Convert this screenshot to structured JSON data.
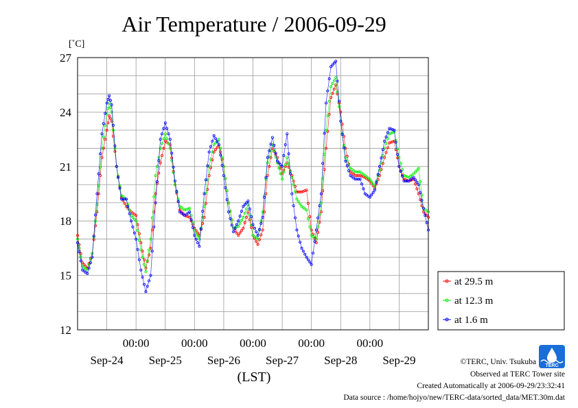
{
  "chart_data": {
    "type": "line",
    "title": "Air Temperature / 2006-09-29",
    "ylabel": "[˚C]",
    "xlabel": "(LST)",
    "ylim": [
      12,
      27
    ],
    "yticks": [
      "27",
      "24",
      "21",
      "18",
      "15",
      "12"
    ],
    "xlim_hours": [
      0,
      144
    ],
    "time_tick_labels": [
      "00:00",
      "00:00",
      "00:00",
      "00:00",
      "00:00"
    ],
    "date_labels": [
      "Sep-24",
      "Sep-25",
      "Sep-26",
      "Sep-27",
      "Sep-28",
      "Sep-29"
    ],
    "grid": true,
    "legend_position": "right-bottom outside",
    "series": [
      {
        "name": "at 29.5 m",
        "color": "#ff0000",
        "points": [
          [
            0,
            17.2
          ],
          [
            2,
            15.7
          ],
          [
            4,
            15.4
          ],
          [
            6,
            16.2
          ],
          [
            8,
            18.5
          ],
          [
            10,
            21.5
          ],
          [
            12,
            23.0
          ],
          [
            13,
            23.8
          ],
          [
            14,
            23.5
          ],
          [
            16,
            21.0
          ],
          [
            18,
            19.3
          ],
          [
            20,
            18.8
          ],
          [
            22,
            18.5
          ],
          [
            24,
            18.3
          ],
          [
            26,
            16.8
          ],
          [
            28,
            15.4
          ],
          [
            30,
            16.5
          ],
          [
            32,
            19.5
          ],
          [
            34,
            21.2
          ],
          [
            36,
            22.4
          ],
          [
            38,
            22.2
          ],
          [
            40,
            20.0
          ],
          [
            42,
            18.6
          ],
          [
            44,
            18.3
          ],
          [
            46,
            18.2
          ],
          [
            48,
            17.6
          ],
          [
            50,
            17.2
          ],
          [
            52,
            18.2
          ],
          [
            54,
            20.5
          ],
          [
            56,
            21.8
          ],
          [
            58,
            22.2
          ],
          [
            60,
            21.0
          ],
          [
            62,
            19.0
          ],
          [
            64,
            17.6
          ],
          [
            66,
            17.2
          ],
          [
            68,
            17.6
          ],
          [
            70,
            18.5
          ],
          [
            72,
            17.2
          ],
          [
            74,
            16.7
          ],
          [
            76,
            17.5
          ],
          [
            78,
            20.5
          ],
          [
            80,
            22.0
          ],
          [
            82,
            21.5
          ],
          [
            84,
            20.6
          ],
          [
            86,
            21.2
          ],
          [
            88,
            20.5
          ],
          [
            90,
            19.6
          ],
          [
            92,
            19.6
          ],
          [
            94,
            19.7
          ],
          [
            96,
            17.5
          ],
          [
            98,
            16.8
          ],
          [
            100,
            18.5
          ],
          [
            102,
            22.0
          ],
          [
            104,
            24.8
          ],
          [
            106,
            25.5
          ],
          [
            108,
            24.0
          ],
          [
            110,
            22.0
          ],
          [
            112,
            20.7
          ],
          [
            114,
            20.5
          ],
          [
            116,
            20.5
          ],
          [
            118,
            20.4
          ],
          [
            120,
            20.2
          ],
          [
            122,
            19.8
          ],
          [
            124,
            20.5
          ],
          [
            126,
            21.5
          ],
          [
            128,
            22.3
          ],
          [
            130,
            22.4
          ],
          [
            132,
            21.0
          ],
          [
            134,
            20.3
          ],
          [
            136,
            20.2
          ],
          [
            138,
            20.3
          ],
          [
            140,
            19.5
          ],
          [
            142,
            18.5
          ],
          [
            144,
            18.2
          ]
        ]
      },
      {
        "name": "at 12.3 m",
        "color": "#00ee00",
        "points": [
          [
            0,
            17.0
          ],
          [
            2,
            15.5
          ],
          [
            4,
            15.3
          ],
          [
            6,
            16.2
          ],
          [
            8,
            18.9
          ],
          [
            10,
            22.0
          ],
          [
            12,
            23.9
          ],
          [
            13,
            24.5
          ],
          [
            14,
            24.0
          ],
          [
            16,
            21.0
          ],
          [
            18,
            19.4
          ],
          [
            20,
            19.2
          ],
          [
            22,
            18.3
          ],
          [
            24,
            18.0
          ],
          [
            26,
            16.4
          ],
          [
            28,
            15.2
          ],
          [
            30,
            17.0
          ],
          [
            32,
            20.5
          ],
          [
            34,
            22.0
          ],
          [
            36,
            22.8
          ],
          [
            38,
            22.0
          ],
          [
            40,
            20.0
          ],
          [
            42,
            18.8
          ],
          [
            44,
            18.6
          ],
          [
            46,
            18.7
          ],
          [
            48,
            17.5
          ],
          [
            50,
            17.0
          ],
          [
            52,
            18.8
          ],
          [
            54,
            21.0
          ],
          [
            56,
            22.2
          ],
          [
            58,
            22.5
          ],
          [
            60,
            21.0
          ],
          [
            62,
            19.0
          ],
          [
            64,
            17.6
          ],
          [
            66,
            17.7
          ],
          [
            68,
            18.2
          ],
          [
            70,
            18.9
          ],
          [
            72,
            17.2
          ],
          [
            74,
            17.0
          ],
          [
            76,
            18.5
          ],
          [
            78,
            21.2
          ],
          [
            80,
            22.2
          ],
          [
            82,
            21.2
          ],
          [
            84,
            20.3
          ],
          [
            86,
            21.5
          ],
          [
            88,
            20.4
          ],
          [
            90,
            19.2
          ],
          [
            92,
            18.8
          ],
          [
            94,
            18.6
          ],
          [
            96,
            17.2
          ],
          [
            98,
            17.0
          ],
          [
            100,
            19.0
          ],
          [
            102,
            23.0
          ],
          [
            104,
            25.4
          ],
          [
            106,
            25.9
          ],
          [
            108,
            23.5
          ],
          [
            110,
            21.5
          ],
          [
            112,
            20.9
          ],
          [
            114,
            20.7
          ],
          [
            116,
            20.7
          ],
          [
            118,
            20.5
          ],
          [
            120,
            20.3
          ],
          [
            122,
            19.9
          ],
          [
            124,
            20.8
          ],
          [
            126,
            22.0
          ],
          [
            128,
            22.8
          ],
          [
            130,
            22.9
          ],
          [
            132,
            21.5
          ],
          [
            134,
            20.5
          ],
          [
            136,
            20.4
          ],
          [
            138,
            20.6
          ],
          [
            140,
            20.9
          ],
          [
            142,
            18.7
          ],
          [
            144,
            18.5
          ]
        ]
      },
      {
        "name": "at 1.6 m",
        "color": "#0000ff",
        "points": [
          [
            0,
            16.8
          ],
          [
            2,
            15.3
          ],
          [
            4,
            15.1
          ],
          [
            6,
            16.0
          ],
          [
            8,
            19.5
          ],
          [
            10,
            22.8
          ],
          [
            12,
            24.5
          ],
          [
            13,
            24.9
          ],
          [
            14,
            24.4
          ],
          [
            16,
            21.0
          ],
          [
            18,
            19.2
          ],
          [
            20,
            19.2
          ],
          [
            22,
            18.0
          ],
          [
            24,
            17.0
          ],
          [
            26,
            15.3
          ],
          [
            28,
            14.1
          ],
          [
            30,
            15.0
          ],
          [
            32,
            19.0
          ],
          [
            34,
            22.5
          ],
          [
            36,
            23.4
          ],
          [
            38,
            22.5
          ],
          [
            40,
            20.2
          ],
          [
            42,
            18.5
          ],
          [
            44,
            18.3
          ],
          [
            46,
            18.5
          ],
          [
            48,
            17.2
          ],
          [
            50,
            16.6
          ],
          [
            52,
            19.5
          ],
          [
            54,
            21.8
          ],
          [
            56,
            22.7
          ],
          [
            58,
            22.2
          ],
          [
            60,
            20.5
          ],
          [
            62,
            18.5
          ],
          [
            64,
            17.4
          ],
          [
            66,
            18.0
          ],
          [
            68,
            18.8
          ],
          [
            70,
            19.1
          ],
          [
            72,
            17.8
          ],
          [
            74,
            17.2
          ],
          [
            76,
            18.2
          ],
          [
            78,
            21.5
          ],
          [
            80,
            22.6
          ],
          [
            82,
            21.3
          ],
          [
            84,
            21.0
          ],
          [
            86,
            22.8
          ],
          [
            88,
            19.5
          ],
          [
            90,
            17.5
          ],
          [
            92,
            16.5
          ],
          [
            94,
            16.0
          ],
          [
            96,
            15.6
          ],
          [
            98,
            17.5
          ],
          [
            100,
            19.5
          ],
          [
            102,
            24.5
          ],
          [
            104,
            26.5
          ],
          [
            106,
            26.8
          ],
          [
            108,
            23.5
          ],
          [
            110,
            21.3
          ],
          [
            112,
            20.5
          ],
          [
            114,
            20.3
          ],
          [
            116,
            20.3
          ],
          [
            118,
            19.5
          ],
          [
            120,
            19.3
          ],
          [
            122,
            19.7
          ],
          [
            124,
            21.0
          ],
          [
            126,
            22.4
          ],
          [
            128,
            23.1
          ],
          [
            130,
            23.0
          ],
          [
            132,
            21.0
          ],
          [
            134,
            20.2
          ],
          [
            136,
            20.2
          ],
          [
            138,
            20.4
          ],
          [
            140,
            20.0
          ],
          [
            142,
            18.7
          ],
          [
            144,
            17.5
          ]
        ]
      }
    ]
  },
  "footer": {
    "copyright": "©TERC, Univ. Tsukuba",
    "observed": "Observed at TERC Tower site",
    "created": "Created Automatically at 2006-09-29/23:32:41",
    "source": "Data source : /home/hojyo/new/TERC-data/sorted_data/MET.30m.dat"
  },
  "logo": {
    "text": "TERC",
    "color": "#1a6ed8"
  }
}
